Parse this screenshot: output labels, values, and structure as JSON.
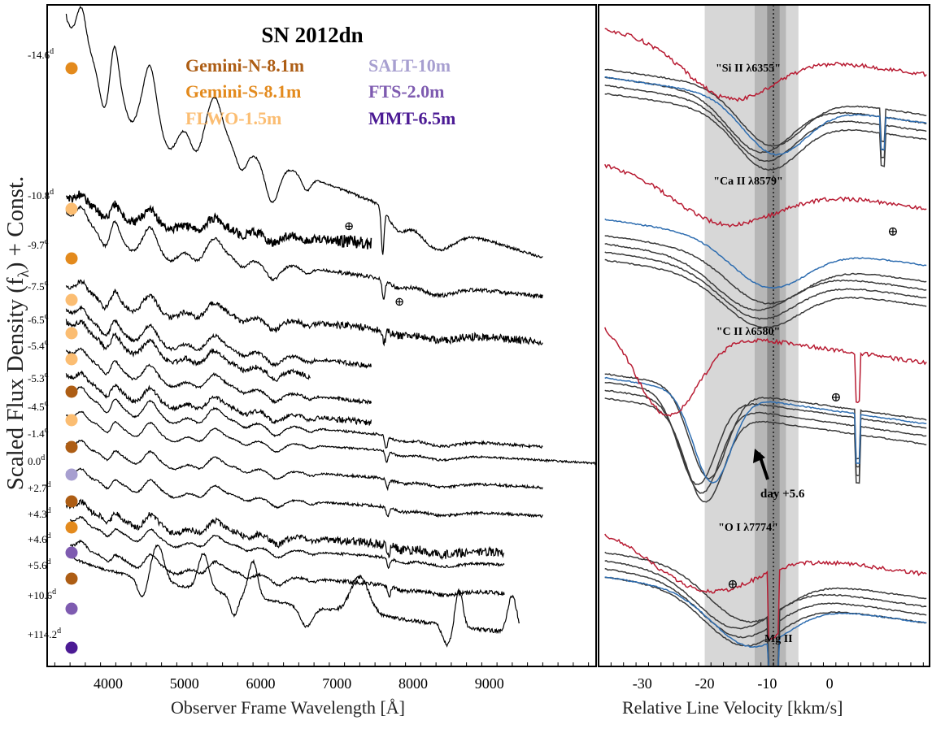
{
  "chart_data": [
    {
      "type": "line",
      "title": "SN 2012dn",
      "xlabel": "Observer Frame Wavelength [Å]",
      "ylabel": "Scaled Flux Density (f",
      "ylabel_sub": "λ",
      "ylabel_tail": ") + Const.",
      "xlim": [
        3200,
        10400
      ],
      "x_ticks": [
        4000,
        5000,
        6000,
        7000,
        8000,
        9000
      ],
      "grid": false,
      "legend": [
        {
          "name": "Gemini-N-8.1m",
          "color": "#ad5d14"
        },
        {
          "name": "Gemini-S-8.1m",
          "color": "#e38a1d"
        },
        {
          "name": "FLWO-1.5m",
          "color": "#fbbd72"
        },
        {
          "name": "SALT-10m",
          "color": "#a79fd0"
        },
        {
          "name": "FTS-2.0m",
          "color": "#7e5bb0"
        },
        {
          "name": "MMT-6.5m",
          "color": "#4b1a94"
        }
      ],
      "series": [
        {
          "name": "-14.6",
          "color": "#e38a1d"
        },
        {
          "name": "-10.8",
          "color": "#fbbd72"
        },
        {
          "name": "-9.7",
          "color": "#e38a1d"
        },
        {
          "name": "-7.5",
          "color": "#fbbd72"
        },
        {
          "name": "-6.5",
          "color": "#fbbd72"
        },
        {
          "name": "-5.4",
          "color": "#fbbd72"
        },
        {
          "name": "-5.3",
          "color": "#ad5d14"
        },
        {
          "name": "-4.5",
          "color": "#fbbd72"
        },
        {
          "name": "-1.4",
          "color": "#ad5d14"
        },
        {
          "name": "0.0",
          "color": "#a79fd0"
        },
        {
          "name": "+2.7",
          "color": "#ad5d14"
        },
        {
          "name": "+4.3",
          "color": "#e38a1d"
        },
        {
          "name": "+4.6",
          "color": "#7e5bb0"
        },
        {
          "name": "+5.6",
          "color": "#ad5d14"
        },
        {
          "name": "+10.6",
          "color": "#7e5bb0"
        },
        {
          "name": "+114.2",
          "color": "#4b1a94"
        }
      ],
      "epoch_unit": "d",
      "telluric_symbol": "⊕"
    },
    {
      "type": "line",
      "xlabel": "Relative Line Velocity [kkm/s]",
      "xlim": [
        -37,
        16
      ],
      "x_ticks": [
        -30,
        -20,
        -10,
        0
      ],
      "grid": false,
      "reference_velocity": -9,
      "shaded_bands": [
        [
          -20,
          -5
        ],
        [
          -12,
          -7
        ],
        [
          -10,
          -8
        ]
      ],
      "panels": [
        {
          "label": "\"Si II λ6355\""
        },
        {
          "label": "\"Ca II λ8579\""
        },
        {
          "label": "\"C II λ6580\""
        },
        {
          "label": "\"O I λ7774\""
        }
      ],
      "annotations": [
        {
          "text": "day +5.6",
          "x": -6
        },
        {
          "text": "Mg II",
          "x": 3
        }
      ],
      "colors": {
        "early": "#b81c33",
        "max": "#2e6db0",
        "late": "#3a3a3a"
      }
    }
  ]
}
